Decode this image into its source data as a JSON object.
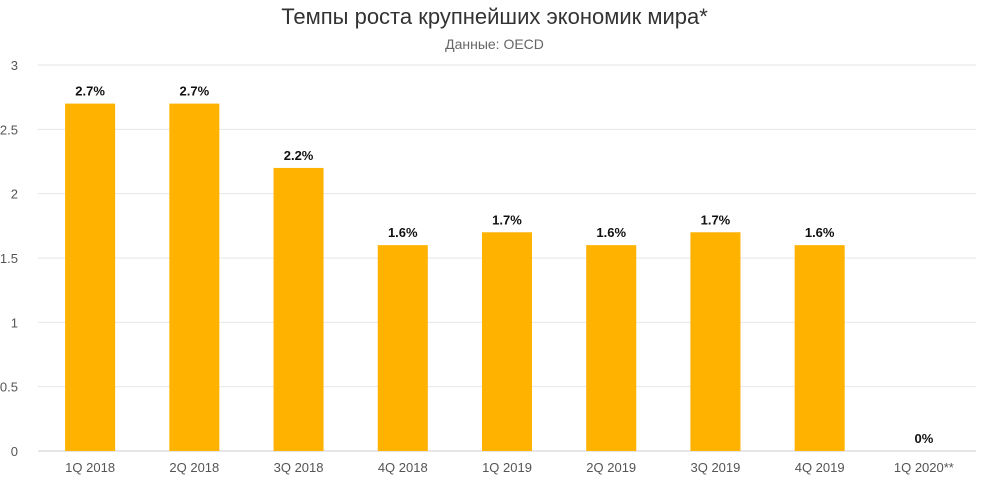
{
  "chart_data": {
    "type": "bar",
    "title": "Темпы роста крупнейших экономик мира*",
    "subtitle": "Данные: OECD",
    "categories": [
      "1Q 2018",
      "2Q 2018",
      "3Q 2018",
      "4Q 2018",
      "1Q 2019",
      "2Q 2019",
      "3Q 2019",
      "4Q 2019",
      "1Q 2020**"
    ],
    "values": [
      2.7,
      2.7,
      2.2,
      1.6,
      1.7,
      1.6,
      1.7,
      1.6,
      0
    ],
    "data_labels": [
      "2.7%",
      "2.7%",
      "2.2%",
      "1.6%",
      "1.7%",
      "1.6%",
      "1.7%",
      "1.6%",
      "0%"
    ],
    "yticks": [
      0,
      0.5,
      1,
      1.5,
      2,
      2.5,
      3
    ],
    "ytick_labels": [
      "0",
      "0.5",
      "1",
      "1.5",
      "2",
      "2.5",
      "3"
    ],
    "ylim": [
      0,
      3
    ],
    "grid": true,
    "legend": "none",
    "colors": {
      "bar": "#FFB300",
      "grid": "#E6E6E6",
      "axis": "#CCCCCC"
    }
  }
}
